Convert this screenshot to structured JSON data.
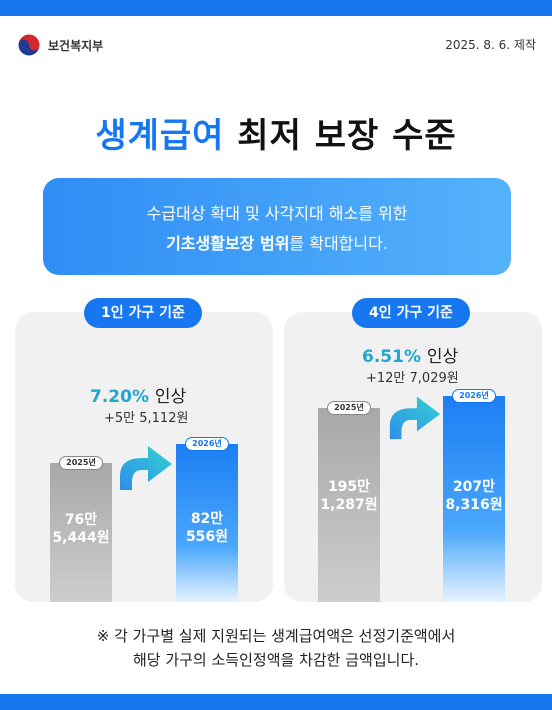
{
  "header": {
    "ministry": "보건복지부",
    "date": "2025. 8. 6. 제작"
  },
  "title": {
    "highlight": "생계급여",
    "rest": "최저 보장 수준"
  },
  "banner": {
    "line1": "수급대상 확대 및 사각지대 해소를 위한",
    "line2_bold": "기초생활보장 범위",
    "line2_rest": "를 확대합니다."
  },
  "panels": [
    {
      "label": "1인 가구 기준",
      "increase_pct": "7.20%",
      "increase_word": "인상",
      "increase_amount": "+5만 5,112원",
      "bars": [
        {
          "year": "2025년",
          "value_line1": "76만",
          "value_line2": "5,444원",
          "amount_won": 765444
        },
        {
          "year": "2026년",
          "value_line1": "82만",
          "value_line2": "556원",
          "amount_won": 820556
        }
      ]
    },
    {
      "label": "4인 가구 기준",
      "increase_pct": "6.51%",
      "increase_word": "인상",
      "increase_amount": "+12만 7,029원",
      "bars": [
        {
          "year": "2025년",
          "value_line1": "195만",
          "value_line2": "1,287원",
          "amount_won": 1951287
        },
        {
          "year": "2026년",
          "value_line1": "207만",
          "value_line2": "8,316원",
          "amount_won": 2078316
        }
      ]
    }
  ],
  "footnote": {
    "line1": "※ 각 가구별 실제 지원되는 생계급여액은 선정기준액에서",
    "line2": "해당 가구의 소득인정액을 차감한 금액입니다."
  },
  "colors": {
    "brand_blue": "#1677f0",
    "accent_teal": "#22a7cc",
    "panel_bg": "#f1f1f1"
  }
}
